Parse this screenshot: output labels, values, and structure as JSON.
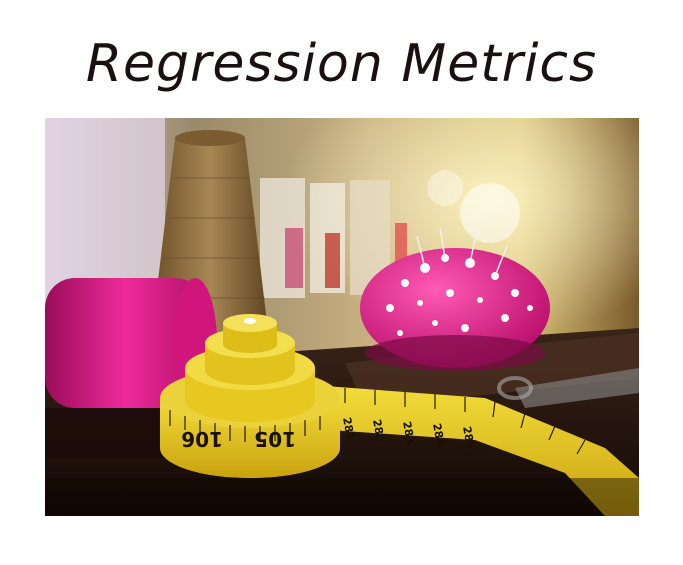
{
  "title": "Regression Metrics",
  "photo": {
    "tape_numbers_spool": [
      "106",
      "105"
    ],
    "tape_numbers_strip": [
      "281",
      "282",
      "283",
      "284",
      "285"
    ],
    "colors": {
      "spool_thread": "#e0178c",
      "pin_cushion": "#e41a8f",
      "tape": "#e6c81a",
      "cone": "#8a6a3a"
    }
  }
}
